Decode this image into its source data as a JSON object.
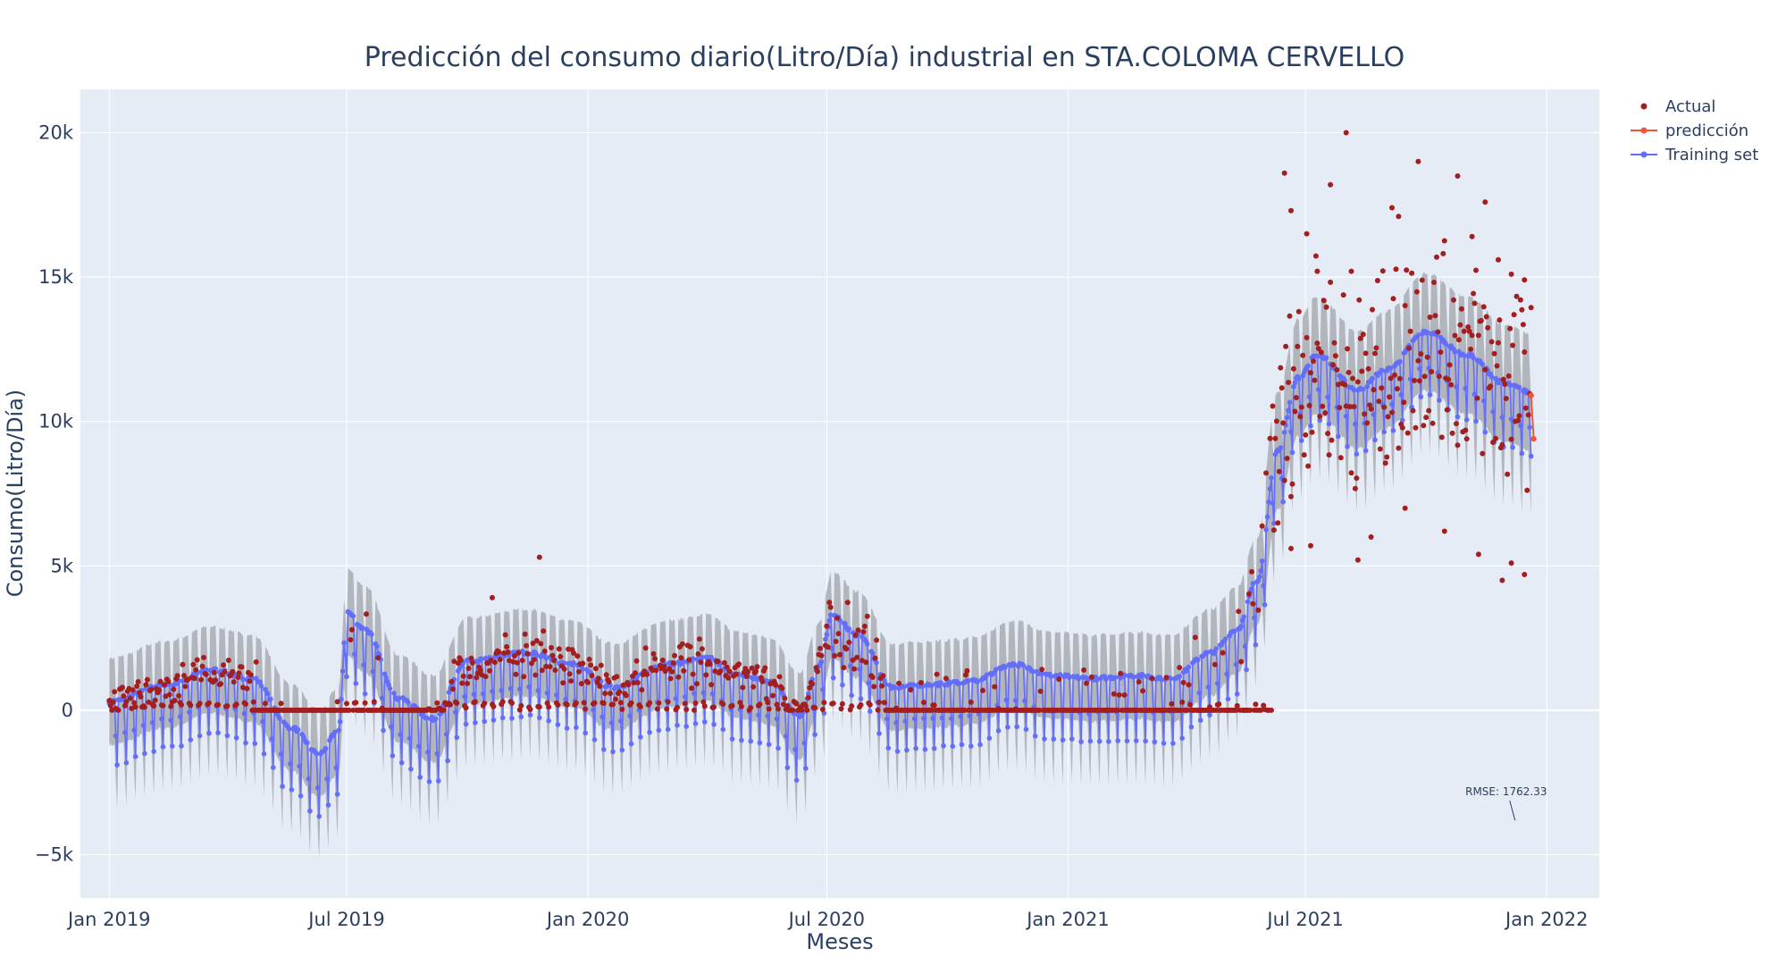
{
  "chart_data": {
    "type": "scatter",
    "title": "Predicción del consumo diario(Litro/Día) industrial en STA.COLOMA CERVELLO",
    "xlabel": "Meses",
    "ylabel": "Consumo(Litro/Día)",
    "x_range": [
      "2018-12-10",
      "2022-02-10"
    ],
    "ylim": [
      -6500,
      21500
    ],
    "x_ticks": [
      {
        "date": "2019-01-01",
        "label": "Jan 2019"
      },
      {
        "date": "2019-07-01",
        "label": "Jul 2019"
      },
      {
        "date": "2020-01-01",
        "label": "Jan 2020"
      },
      {
        "date": "2020-07-01",
        "label": "Jul 2020"
      },
      {
        "date": "2021-01-01",
        "label": "Jan 2021"
      },
      {
        "date": "2021-07-01",
        "label": "Jul 2021"
      },
      {
        "date": "2022-01-01",
        "label": "Jan 2022"
      }
    ],
    "y_ticks": [
      {
        "value": -5000,
        "label": "−5k"
      },
      {
        "value": 0,
        "label": "0"
      },
      {
        "value": 5000,
        "label": "5k"
      },
      {
        "value": 10000,
        "label": "10k"
      },
      {
        "value": 15000,
        "label": "15k"
      },
      {
        "value": 20000,
        "label": "20k"
      }
    ],
    "legend": {
      "placement": "top-right",
      "entries": [
        {
          "name": "Actual",
          "color": "#a31f1f",
          "mode": "markers"
        },
        {
          "name": "predicción",
          "color": "#ef553b",
          "mode": "lines+markers"
        },
        {
          "name": "Training set",
          "color": "#636efa",
          "mode": "lines+markers"
        }
      ]
    },
    "series_colors": {
      "actual": "#a31f1f",
      "prediction": "#ef553b",
      "training": "#636efa",
      "band": "#a9abb0"
    },
    "trend_knots": [
      [
        "2019-01-01",
        300
      ],
      [
        "2019-02-15",
        900
      ],
      [
        "2019-03-20",
        1400
      ],
      [
        "2019-04-20",
        1100
      ],
      [
        "2019-05-20",
        -600
      ],
      [
        "2019-06-10",
        -1500
      ],
      [
        "2019-06-25",
        -700
      ],
      [
        "2019-07-01",
        3400
      ],
      [
        "2019-07-15",
        2800
      ],
      [
        "2019-08-10",
        400
      ],
      [
        "2019-09-05",
        -300
      ],
      [
        "2019-10-01",
        1700
      ],
      [
        "2019-11-15",
        2000
      ],
      [
        "2019-12-20",
        1600
      ],
      [
        "2020-01-20",
        800
      ],
      [
        "2020-03-01",
        1600
      ],
      [
        "2020-04-01",
        1800
      ],
      [
        "2020-04-25",
        1200
      ],
      [
        "2020-05-20",
        1000
      ],
      [
        "2020-06-10",
        -200
      ],
      [
        "2020-06-25",
        1500
      ],
      [
        "2020-07-05",
        3300
      ],
      [
        "2020-07-25",
        2600
      ],
      [
        "2020-08-20",
        800
      ],
      [
        "2020-09-20",
        900
      ],
      [
        "2020-10-20",
        1000
      ],
      [
        "2020-11-20",
        1600
      ],
      [
        "2020-12-20",
        1200
      ],
      [
        "2021-01-20",
        1100
      ],
      [
        "2021-02-20",
        1200
      ],
      [
        "2021-03-20",
        1100
      ],
      [
        "2021-04-20",
        2000
      ],
      [
        "2021-05-10",
        2800
      ],
      [
        "2021-05-25",
        4500
      ],
      [
        "2021-06-10",
        9000
      ],
      [
        "2021-06-25",
        11500
      ],
      [
        "2021-07-10",
        12300
      ],
      [
        "2021-08-10",
        11100
      ],
      [
        "2021-09-01",
        11800
      ],
      [
        "2021-10-01",
        13100
      ],
      [
        "2021-11-01",
        12300
      ],
      [
        "2021-12-01",
        11300
      ],
      [
        "2021-12-20",
        11000
      ]
    ],
    "weekly_dip": 2200,
    "band_halfwidth": 1500,
    "actual_zero_runs": [
      [
        "2019-04-20",
        "2019-08-31"
      ],
      [
        "2020-08-15",
        "2020-11-30"
      ],
      [
        "2020-12-01",
        "2021-06-05"
      ]
    ],
    "actual_high_points": [
      [
        "2021-06-15",
        18600
      ],
      [
        "2021-06-20",
        17300
      ],
      [
        "2021-07-02",
        16500
      ],
      [
        "2021-07-10",
        15200
      ],
      [
        "2021-07-20",
        18200
      ],
      [
        "2021-08-01",
        20000
      ],
      [
        "2021-08-05",
        15200
      ],
      [
        "2021-09-05",
        17400
      ],
      [
        "2021-09-10",
        17100
      ],
      [
        "2021-09-25",
        19000
      ],
      [
        "2021-10-25",
        18500
      ],
      [
        "2021-11-05",
        16400
      ],
      [
        "2021-11-15",
        17600
      ],
      [
        "2021-11-25",
        15600
      ],
      [
        "2021-12-05",
        15100
      ],
      [
        "2021-12-15",
        14900
      ],
      [
        "2021-06-20",
        5600
      ],
      [
        "2021-07-05",
        5700
      ],
      [
        "2021-08-10",
        5200
      ],
      [
        "2021-08-20",
        6000
      ],
      [
        "2021-09-15",
        7000
      ],
      [
        "2021-10-15",
        6200
      ],
      [
        "2021-11-10",
        5400
      ],
      [
        "2021-11-28",
        4500
      ],
      [
        "2021-12-05",
        5100
      ],
      [
        "2021-12-15",
        4700
      ],
      [
        "2019-11-25",
        5300
      ],
      [
        "2019-10-20",
        3900
      ]
    ],
    "prediction": [
      [
        "2021-12-20",
        10900
      ],
      [
        "2021-12-22",
        9400
      ]
    ],
    "annotation": {
      "text": "RMSE: 1762.33",
      "date": "2021-12-01",
      "value": -3750
    }
  }
}
